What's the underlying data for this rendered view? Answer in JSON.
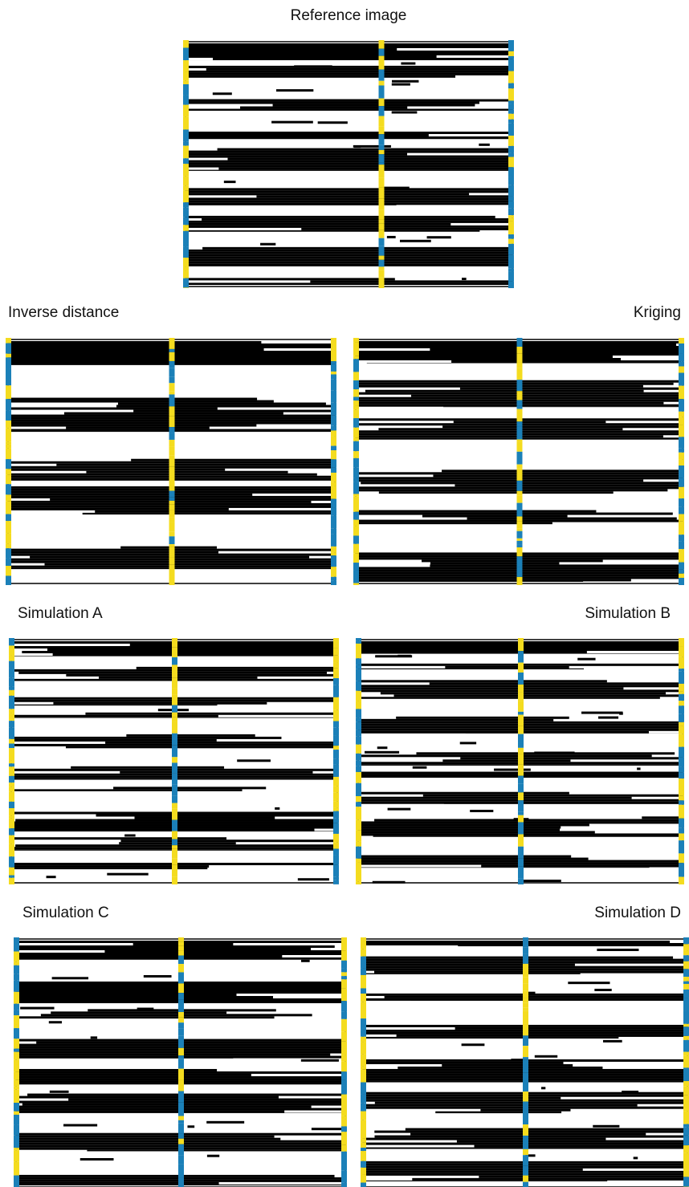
{
  "panels": [
    {
      "title": "Reference image"
    },
    {
      "title": "Inverse distance"
    },
    {
      "title": "Kriging"
    },
    {
      "title": "Simulation A"
    },
    {
      "title": "Simulation B"
    },
    {
      "title": "Simulation C"
    },
    {
      "title": "Simulation D"
    }
  ]
}
